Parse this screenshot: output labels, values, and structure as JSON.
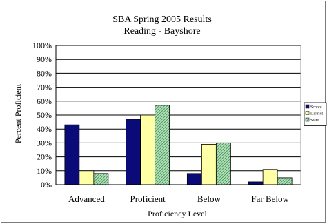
{
  "chart_data": {
    "type": "bar",
    "title": "SBA Spring 2005 Results",
    "subtitle": "Reading - Bayshore",
    "xlabel": "Proficiency Level",
    "ylabel": "Percent Proficient",
    "categories": [
      "Advanced",
      "Proficient",
      "Below",
      "Far Below"
    ],
    "ylim": [
      0,
      100
    ],
    "yticks": [
      0,
      10,
      20,
      30,
      40,
      50,
      60,
      70,
      80,
      90,
      100
    ],
    "ytick_suffix": "%",
    "grid": true,
    "legend_position": "right",
    "series": [
      {
        "name": "School",
        "color": "#0a0a78",
        "pattern": "solid",
        "values": [
          43,
          47,
          8,
          2
        ]
      },
      {
        "name": "District",
        "color": "#ffffa6",
        "pattern": "solid",
        "values": [
          10,
          50,
          29,
          11
        ]
      },
      {
        "name": "State",
        "color": "#8fcf9a",
        "pattern": "hatch",
        "values": [
          8,
          57,
          30,
          5
        ]
      }
    ]
  }
}
